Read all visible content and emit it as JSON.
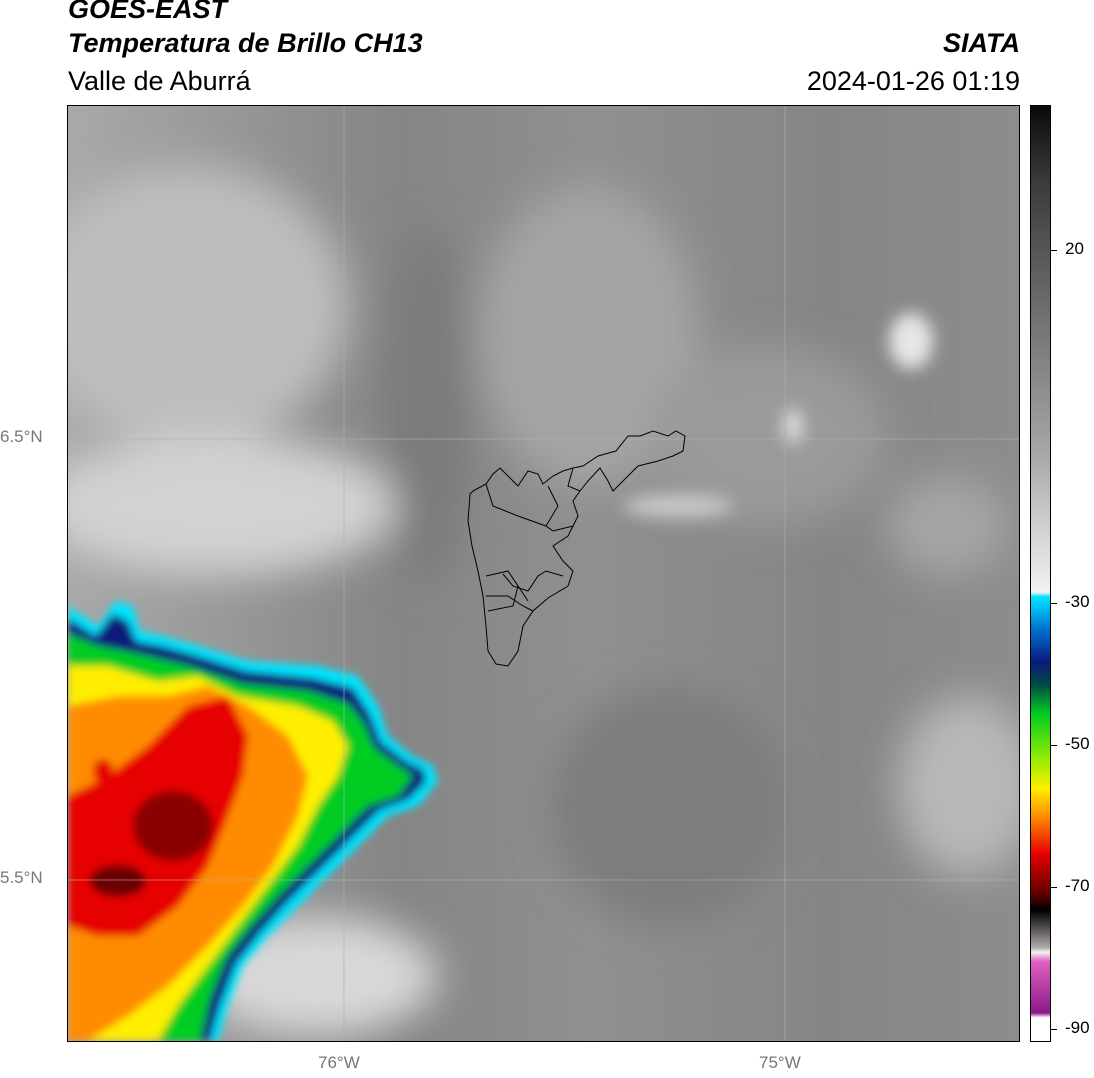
{
  "header": {
    "satellite": "GOES-EAST",
    "product": "Temperatura de Brillo CH13",
    "region": "Valle de Aburrá",
    "organization": "SIATA",
    "timestamp": "2024-01-26 01:19"
  },
  "map": {
    "latitude_labels": [
      "6.5°N",
      "5.5°N"
    ],
    "longitude_labels": [
      "76°W",
      "75°W"
    ]
  },
  "colorbar": {
    "tick_labels": [
      "20",
      "-30",
      "-50",
      "-70",
      "-90"
    ],
    "colors": {
      "warm_gray": "#8a8a8a",
      "light_gray": "#e8e8e8",
      "cyan": "#00e5ff",
      "navy": "#0a1a7a",
      "green": "#00cc22",
      "yellow": "#ffee00",
      "orange": "#ff8c00",
      "red": "#e60000",
      "dark_red": "#6a0000",
      "magenta": "#e060c0",
      "purple": "#8a1a8a"
    }
  }
}
